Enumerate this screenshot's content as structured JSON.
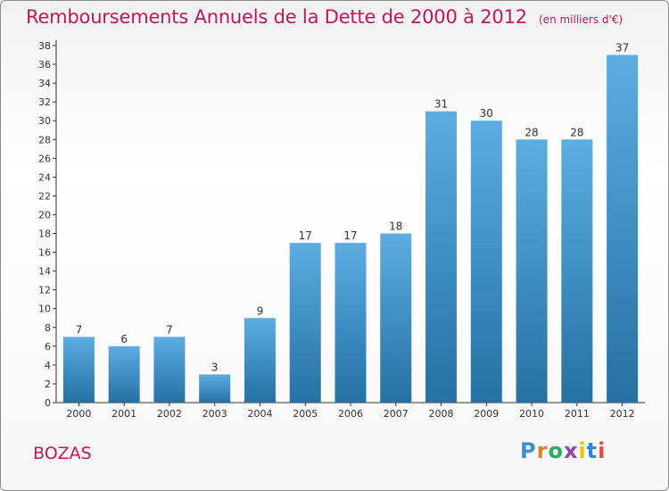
{
  "header": {
    "title": "Remboursements Annuels de la Dette de 2000 à 2012",
    "unit": "(en milliers d'€)"
  },
  "commune": "BOZAS",
  "logo": {
    "letters": [
      "P",
      "r",
      "o",
      "x",
      "i",
      "t",
      "i"
    ],
    "colors": [
      "#3b8fd6",
      "#e67e22",
      "#27ae60",
      "#8e44ad",
      "#f1c40f",
      "#2e86de",
      "#e74c3c"
    ]
  },
  "chart_data": {
    "type": "bar",
    "categories": [
      "2000",
      "2001",
      "2002",
      "2003",
      "2004",
      "2005",
      "2006",
      "2007",
      "2008",
      "2009",
      "2010",
      "2011",
      "2012"
    ],
    "values": [
      7,
      6,
      7,
      3,
      9,
      17,
      17,
      18,
      31,
      30,
      28,
      28,
      37
    ],
    "title": "Remboursements Annuels de la Dette de 2000 à 2012",
    "subtitle": "(en milliers d'€)",
    "ylim": [
      0,
      38
    ],
    "yticks": [
      0,
      2,
      4,
      6,
      8,
      10,
      12,
      14,
      16,
      18,
      20,
      22,
      24,
      26,
      28,
      30,
      32,
      34,
      36,
      38
    ],
    "grid": false,
    "colors": {
      "bar_light": "#5dade2",
      "bar_dark": "#2471a3",
      "axis": "#333333"
    }
  }
}
